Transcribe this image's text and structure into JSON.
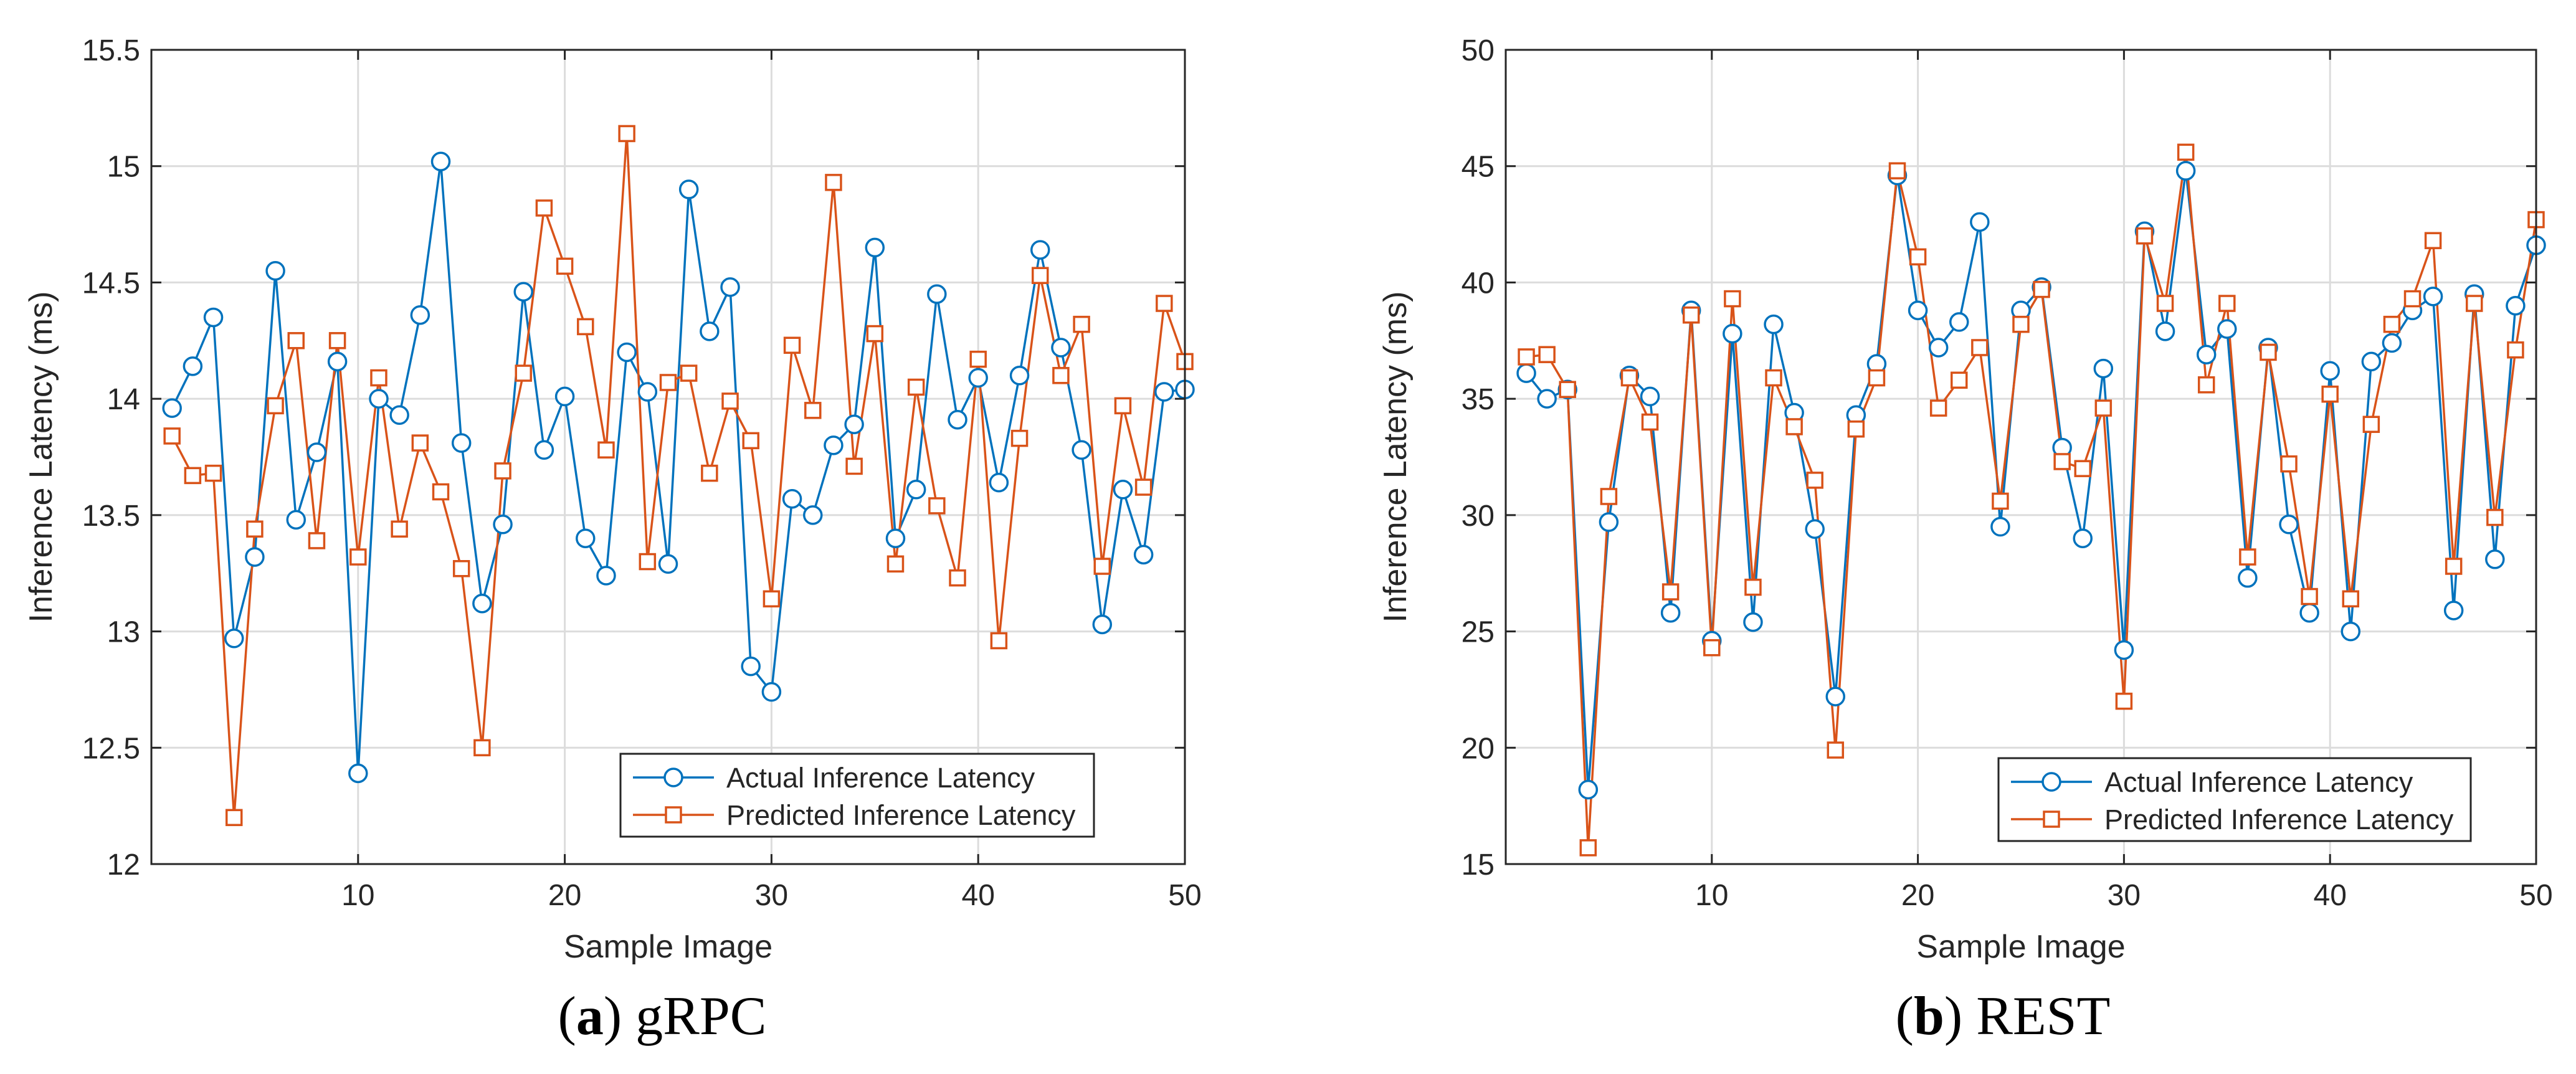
{
  "chart_data": [
    {
      "type": "line",
      "panel_label": "a",
      "panel_title": "gRPC",
      "xlabel": "Sample Image",
      "ylabel": "Inference Latency (ms)",
      "xlim": [
        0,
        50
      ],
      "ylim": [
        12,
        15.5
      ],
      "xticks": [
        10,
        20,
        30,
        40,
        50
      ],
      "yticks": [
        12,
        12.5,
        13,
        13.5,
        14,
        14.5,
        15,
        15.5
      ],
      "ytick_labels": [
        "12",
        "12.5",
        "13",
        "13.5",
        "14",
        "14.5",
        "15",
        "15.5"
      ],
      "grid": true,
      "legend_position": "bottom-right",
      "x": [
        1,
        2,
        3,
        4,
        5,
        6,
        7,
        8,
        9,
        10,
        11,
        12,
        13,
        14,
        15,
        16,
        17,
        18,
        19,
        20,
        21,
        22,
        23,
        24,
        25,
        26,
        27,
        28,
        29,
        30,
        31,
        32,
        33,
        34,
        35,
        36,
        37,
        38,
        39,
        40,
        41,
        42,
        43,
        44,
        45,
        46,
        47,
        48,
        49,
        50
      ],
      "series": [
        {
          "name": "Actual Inference Latency",
          "color": "#0072BD",
          "marker": "circle",
          "values": [
            13.96,
            14.14,
            14.35,
            12.97,
            13.32,
            14.55,
            13.48,
            13.77,
            14.16,
            12.39,
            14.0,
            13.93,
            14.36,
            15.02,
            13.81,
            13.12,
            13.46,
            14.46,
            13.78,
            14.01,
            13.4,
            13.24,
            14.2,
            14.03,
            13.29,
            14.9,
            14.29,
            14.48,
            12.85,
            12.74,
            13.57,
            13.5,
            13.8,
            13.89,
            14.65,
            13.4,
            13.61,
            14.45,
            13.91,
            14.09,
            13.64,
            14.1,
            14.64,
            14.22,
            13.78,
            13.03,
            13.61,
            13.33,
            14.03,
            14.04
          ]
        },
        {
          "name": "Predicted Inference Latency",
          "color": "#D95319",
          "marker": "square",
          "values": [
            13.84,
            13.67,
            13.68,
            12.2,
            13.44,
            13.97,
            14.25,
            13.39,
            14.25,
            13.32,
            14.09,
            13.44,
            13.81,
            13.6,
            13.27,
            12.5,
            13.69,
            14.11,
            14.82,
            14.57,
            14.31,
            13.78,
            15.14,
            13.3,
            14.07,
            14.11,
            13.68,
            13.99,
            13.82,
            13.14,
            14.23,
            13.95,
            14.93,
            13.71,
            14.28,
            13.29,
            14.05,
            13.54,
            13.23,
            14.17,
            12.96,
            13.83,
            14.53,
            14.1,
            14.32,
            13.28,
            13.97,
            13.62,
            14.41,
            14.16
          ]
        }
      ]
    },
    {
      "type": "line",
      "panel_label": "b",
      "panel_title": "REST",
      "xlabel": "Sample Image",
      "ylabel": "Inference Latency (ms)",
      "xlim": [
        0,
        50
      ],
      "ylim": [
        15,
        50
      ],
      "xticks": [
        10,
        20,
        30,
        40,
        50
      ],
      "yticks": [
        15,
        20,
        25,
        30,
        35,
        40,
        45,
        50
      ],
      "ytick_labels": [
        "15",
        "20",
        "25",
        "30",
        "35",
        "40",
        "45",
        "50"
      ],
      "grid": true,
      "legend_position": "bottom-right",
      "x": [
        1,
        2,
        3,
        4,
        5,
        6,
        7,
        8,
        9,
        10,
        11,
        12,
        13,
        14,
        15,
        16,
        17,
        18,
        19,
        20,
        21,
        22,
        23,
        24,
        25,
        26,
        27,
        28,
        29,
        30,
        31,
        32,
        33,
        34,
        35,
        36,
        37,
        38,
        39,
        40,
        41,
        42,
        43,
        44,
        45,
        46,
        47,
        48,
        49,
        50
      ],
      "series": [
        {
          "name": "Actual Inference Latency",
          "color": "#0072BD",
          "marker": "circle",
          "values": [
            36.1,
            35.0,
            35.4,
            18.2,
            29.7,
            36.0,
            35.1,
            25.8,
            38.8,
            24.6,
            37.8,
            25.4,
            38.2,
            34.4,
            29.4,
            22.2,
            34.3,
            36.5,
            44.6,
            38.8,
            37.2,
            38.3,
            42.6,
            29.5,
            38.8,
            39.8,
            32.9,
            29.0,
            36.3,
            24.2,
            42.2,
            37.9,
            44.8,
            36.9,
            38.0,
            27.3,
            37.2,
            29.6,
            25.8,
            36.2,
            25.0,
            36.6,
            37.4,
            38.8,
            39.4,
            25.9,
            39.5,
            28.1,
            39.0,
            41.6
          ]
        },
        {
          "name": "Predicted Inference Latency",
          "color": "#D95319",
          "marker": "square",
          "values": [
            36.8,
            36.9,
            35.4,
            15.7,
            30.8,
            35.9,
            34.0,
            26.7,
            38.6,
            24.3,
            39.3,
            26.9,
            35.9,
            33.8,
            31.5,
            19.9,
            33.7,
            35.9,
            44.8,
            41.1,
            34.6,
            35.8,
            37.2,
            30.6,
            38.2,
            39.7,
            32.3,
            32.0,
            34.6,
            22.0,
            42.0,
            39.1,
            45.6,
            35.6,
            39.1,
            28.2,
            37.0,
            32.2,
            26.5,
            35.2,
            26.4,
            33.9,
            38.2,
            39.3,
            41.8,
            27.8,
            39.1,
            29.9,
            37.1,
            42.7
          ]
        }
      ]
    }
  ],
  "captions": {
    "a_label": "a",
    "a_text": " gRPC",
    "b_label": "b",
    "b_text": " REST"
  }
}
